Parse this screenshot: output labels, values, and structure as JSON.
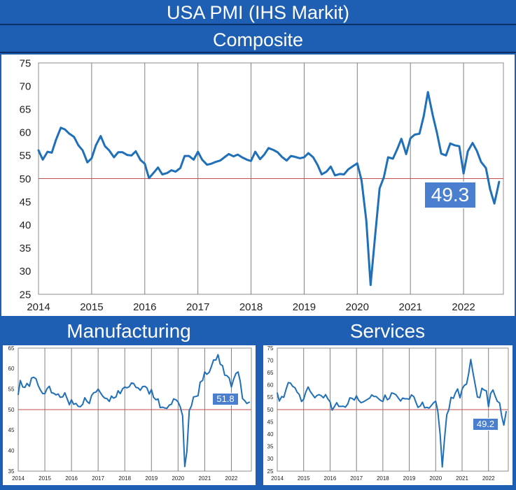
{
  "header": {
    "title": "USA PMI (IHS Markit)"
  },
  "colors": {
    "line": "#1f70b8",
    "ref": "#c0504d",
    "banner": "#1f5fb3"
  },
  "chart_data": [
    {
      "name": "composite",
      "type": "line",
      "title": "Composite",
      "ylim": [
        25,
        75
      ],
      "yticks": [
        25,
        30,
        35,
        40,
        45,
        50,
        55,
        60,
        65,
        70,
        75
      ],
      "xticks": [
        "2014",
        "2015",
        "2016",
        "2017",
        "2018",
        "2019",
        "2020",
        "2021",
        "2022"
      ],
      "xlim": [
        2014,
        2022.75
      ],
      "reference_line": 50,
      "callout": "49.3",
      "series": [
        {
          "name": "Composite PMI",
          "x": [
            2014.0,
            2014.08,
            2014.17,
            2014.25,
            2014.33,
            2014.42,
            2014.5,
            2014.58,
            2014.67,
            2014.75,
            2014.83,
            2014.92,
            2015.0,
            2015.08,
            2015.17,
            2015.25,
            2015.33,
            2015.42,
            2015.5,
            2015.58,
            2015.67,
            2015.75,
            2015.83,
            2015.92,
            2016.0,
            2016.08,
            2016.17,
            2016.25,
            2016.33,
            2016.42,
            2016.5,
            2016.58,
            2016.67,
            2016.75,
            2016.83,
            2016.92,
            2017.0,
            2017.08,
            2017.17,
            2017.25,
            2017.33,
            2017.42,
            2017.5,
            2017.58,
            2017.67,
            2017.75,
            2017.83,
            2017.92,
            2018.0,
            2018.08,
            2018.17,
            2018.25,
            2018.33,
            2018.42,
            2018.5,
            2018.58,
            2018.67,
            2018.75,
            2018.83,
            2018.92,
            2019.0,
            2019.08,
            2019.17,
            2019.25,
            2019.33,
            2019.42,
            2019.5,
            2019.58,
            2019.67,
            2019.75,
            2019.83,
            2019.92,
            2020.0,
            2020.08,
            2020.17,
            2020.25,
            2020.33,
            2020.42,
            2020.5,
            2020.58,
            2020.67,
            2020.75,
            2020.83,
            2020.92,
            2021.0,
            2021.08,
            2021.17,
            2021.25,
            2021.33,
            2021.42,
            2021.5,
            2021.58,
            2021.67,
            2021.75,
            2021.83,
            2021.92,
            2022.0,
            2022.08,
            2022.17,
            2022.25,
            2022.33,
            2022.42,
            2022.5,
            2022.58,
            2022.67
          ],
          "values": [
            56.1,
            54.1,
            55.8,
            55.6,
            58.4,
            61.0,
            60.6,
            59.7,
            59.0,
            57.2,
            56.1,
            53.5,
            54.4,
            57.2,
            59.2,
            57.0,
            56.1,
            54.6,
            55.7,
            55.7,
            55.1,
            55.0,
            55.9,
            54.0,
            53.2,
            50.1,
            51.3,
            52.4,
            50.9,
            51.2,
            51.8,
            51.5,
            52.3,
            54.9,
            54.9,
            54.1,
            55.8,
            54.1,
            53.0,
            53.2,
            53.6,
            53.9,
            54.6,
            55.3,
            54.8,
            55.2,
            54.6,
            54.1,
            53.8,
            55.8,
            54.2,
            55.2,
            56.6,
            56.2,
            55.7,
            54.7,
            53.9,
            54.9,
            54.7,
            54.4,
            54.6,
            55.5,
            54.6,
            53.0,
            50.9,
            51.5,
            52.6,
            50.7,
            51.0,
            50.9,
            52.0,
            52.7,
            53.3,
            49.6,
            40.9,
            27.0,
            37.0,
            47.9,
            50.3,
            54.6,
            54.3,
            56.3,
            58.6,
            55.3,
            58.7,
            59.5,
            59.7,
            63.5,
            68.7,
            63.7,
            59.9,
            55.4,
            55.0,
            57.6,
            57.2,
            57.0,
            51.1,
            55.9,
            57.7,
            56.0,
            53.6,
            52.3,
            47.7,
            44.6,
            49.3
          ]
        }
      ]
    },
    {
      "name": "manufacturing",
      "type": "line",
      "title": "Manufacturing",
      "ylim": [
        35,
        65
      ],
      "yticks": [
        35,
        40,
        45,
        50,
        55,
        60,
        65
      ],
      "xticks": [
        "2014",
        "2015",
        "2016",
        "2017",
        "2018",
        "2019",
        "2020",
        "2021",
        "2022"
      ],
      "xlim": [
        2014,
        2022.75
      ],
      "reference_line": 50,
      "callout": "51.8",
      "series": [
        {
          "name": "Manufacturing PMI",
          "x": [
            2014.0,
            2014.08,
            2014.17,
            2014.25,
            2014.33,
            2014.42,
            2014.5,
            2014.58,
            2014.67,
            2014.75,
            2014.83,
            2014.92,
            2015.0,
            2015.08,
            2015.17,
            2015.25,
            2015.33,
            2015.42,
            2015.5,
            2015.58,
            2015.67,
            2015.75,
            2015.83,
            2015.92,
            2016.0,
            2016.08,
            2016.17,
            2016.25,
            2016.33,
            2016.42,
            2016.5,
            2016.58,
            2016.67,
            2016.75,
            2016.83,
            2016.92,
            2017.0,
            2017.08,
            2017.17,
            2017.25,
            2017.33,
            2017.42,
            2017.5,
            2017.58,
            2017.67,
            2017.75,
            2017.83,
            2017.92,
            2018.0,
            2018.08,
            2018.17,
            2018.25,
            2018.33,
            2018.42,
            2018.5,
            2018.58,
            2018.67,
            2018.75,
            2018.83,
            2018.92,
            2019.0,
            2019.08,
            2019.17,
            2019.25,
            2019.33,
            2019.42,
            2019.5,
            2019.58,
            2019.67,
            2019.75,
            2019.83,
            2019.92,
            2020.0,
            2020.08,
            2020.17,
            2020.25,
            2020.33,
            2020.42,
            2020.5,
            2020.58,
            2020.67,
            2020.75,
            2020.83,
            2020.92,
            2021.0,
            2021.08,
            2021.17,
            2021.25,
            2021.33,
            2021.42,
            2021.5,
            2021.58,
            2021.67,
            2021.75,
            2021.83,
            2021.92,
            2022.0,
            2022.08,
            2022.17,
            2022.25,
            2022.33,
            2022.42,
            2022.5,
            2022.58,
            2022.67
          ],
          "values": [
            53.7,
            57.1,
            55.5,
            55.4,
            56.4,
            55.7,
            57.7,
            57.9,
            57.5,
            55.9,
            54.8,
            53.9,
            53.9,
            55.1,
            55.7,
            54.1,
            54.0,
            53.6,
            53.8,
            53.0,
            53.1,
            54.1,
            52.8,
            51.2,
            52.4,
            51.3,
            51.5,
            50.8,
            50.7,
            51.3,
            52.9,
            52.0,
            51.5,
            53.4,
            54.1,
            54.3,
            55.0,
            54.2,
            53.3,
            52.8,
            52.7,
            52.0,
            53.3,
            52.8,
            53.1,
            54.6,
            53.9,
            55.1,
            55.5,
            55.3,
            55.6,
            56.5,
            56.4,
            55.4,
            55.3,
            54.7,
            55.6,
            55.7,
            55.3,
            53.8,
            54.9,
            53.0,
            52.4,
            52.6,
            50.5,
            50.6,
            50.4,
            50.3,
            51.1,
            51.3,
            52.6,
            52.4,
            51.9,
            50.7,
            48.5,
            36.1,
            39.8,
            49.8,
            50.9,
            53.1,
            53.2,
            53.4,
            56.7,
            57.1,
            59.2,
            58.6,
            59.1,
            60.5,
            62.1,
            62.1,
            63.4,
            61.1,
            60.7,
            58.4,
            58.3,
            57.7,
            55.5,
            57.3,
            58.8,
            59.2,
            57.0,
            52.7,
            52.2,
            51.5,
            51.8
          ]
        }
      ]
    },
    {
      "name": "services",
      "type": "line",
      "title": "Services",
      "ylim": [
        25,
        75
      ],
      "yticks": [
        25,
        30,
        35,
        40,
        45,
        50,
        55,
        60,
        65,
        70,
        75
      ],
      "xticks": [
        "2014",
        "2015",
        "2016",
        "2017",
        "2018",
        "2019",
        "2020",
        "2021",
        "2022"
      ],
      "xlim": [
        2014,
        2022.75
      ],
      "reference_line": 50,
      "callout": "49.2",
      "series": [
        {
          "name": "Services PMI",
          "x": [
            2014.0,
            2014.08,
            2014.17,
            2014.25,
            2014.33,
            2014.42,
            2014.5,
            2014.58,
            2014.67,
            2014.75,
            2014.83,
            2014.92,
            2015.0,
            2015.08,
            2015.17,
            2015.25,
            2015.33,
            2015.42,
            2015.5,
            2015.58,
            2015.67,
            2015.75,
            2015.83,
            2015.92,
            2016.0,
            2016.08,
            2016.17,
            2016.25,
            2016.33,
            2016.42,
            2016.5,
            2016.58,
            2016.67,
            2016.75,
            2016.83,
            2016.92,
            2017.0,
            2017.08,
            2017.17,
            2017.25,
            2017.33,
            2017.42,
            2017.5,
            2017.58,
            2017.67,
            2017.75,
            2017.83,
            2017.92,
            2018.0,
            2018.08,
            2018.17,
            2018.25,
            2018.33,
            2018.42,
            2018.5,
            2018.58,
            2018.67,
            2018.75,
            2018.83,
            2018.92,
            2019.0,
            2019.08,
            2019.17,
            2019.25,
            2019.33,
            2019.42,
            2019.5,
            2019.58,
            2019.67,
            2019.75,
            2019.83,
            2019.92,
            2020.0,
            2020.08,
            2020.17,
            2020.25,
            2020.33,
            2020.42,
            2020.5,
            2020.58,
            2020.67,
            2020.75,
            2020.83,
            2020.92,
            2021.0,
            2021.08,
            2021.17,
            2021.25,
            2021.33,
            2021.42,
            2021.5,
            2021.58,
            2021.67,
            2021.75,
            2021.83,
            2021.92,
            2022.0,
            2022.08,
            2022.17,
            2022.25,
            2022.33,
            2022.42,
            2022.5,
            2022.58,
            2022.67
          ],
          "values": [
            56.7,
            53.5,
            55.3,
            55.0,
            58.1,
            61.0,
            60.8,
            59.5,
            58.9,
            57.1,
            56.2,
            53.3,
            54.2,
            57.1,
            59.2,
            57.4,
            56.2,
            54.8,
            55.7,
            56.1,
            55.6,
            54.8,
            56.1,
            54.3,
            53.2,
            49.8,
            51.3,
            52.8,
            51.3,
            51.3,
            51.4,
            51.0,
            52.3,
            54.8,
            54.6,
            53.9,
            55.6,
            53.8,
            52.8,
            53.1,
            53.6,
            54.2,
            54.7,
            56.0,
            55.3,
            55.3,
            54.5,
            53.7,
            53.3,
            55.9,
            54.0,
            54.6,
            56.8,
            56.5,
            56.0,
            54.8,
            53.5,
            54.7,
            54.4,
            54.4,
            54.2,
            56.0,
            55.3,
            53.0,
            50.9,
            51.5,
            53.0,
            50.7,
            50.9,
            50.6,
            51.6,
            52.8,
            53.4,
            49.4,
            39.8,
            26.7,
            37.5,
            47.9,
            50.0,
            55.0,
            54.6,
            56.9,
            58.4,
            54.8,
            58.3,
            59.8,
            60.4,
            64.7,
            70.4,
            64.6,
            59.9,
            55.1,
            54.9,
            58.7,
            58.0,
            57.6,
            51.2,
            56.5,
            58.0,
            55.6,
            53.4,
            52.7,
            47.3,
            43.7,
            49.2
          ]
        }
      ]
    }
  ]
}
